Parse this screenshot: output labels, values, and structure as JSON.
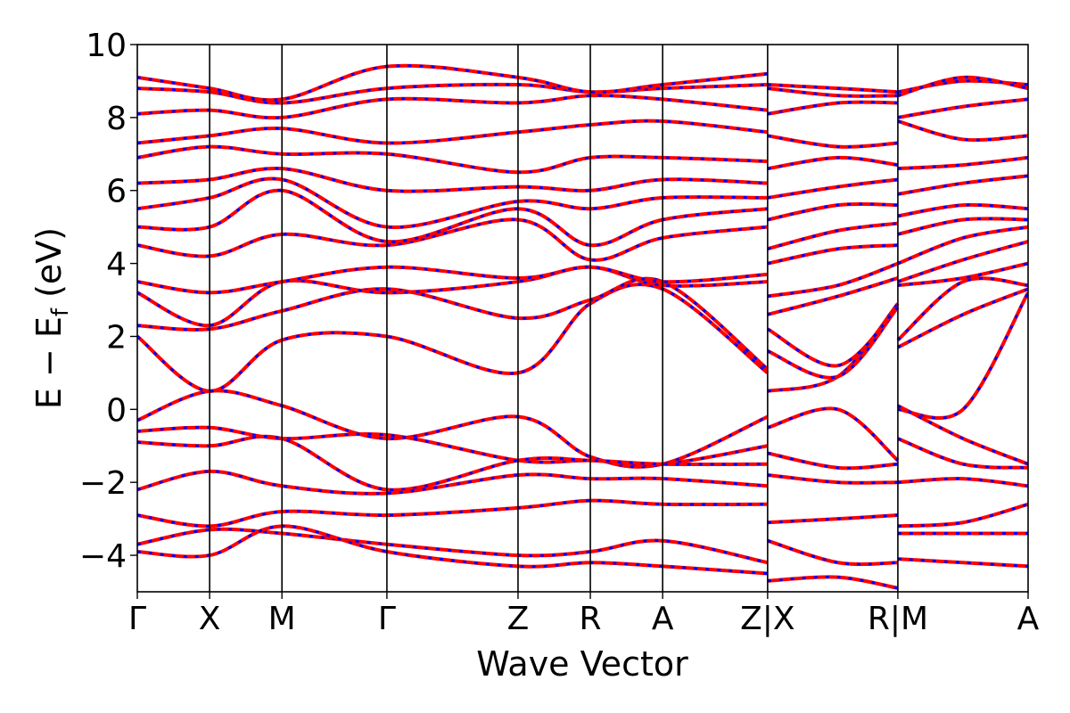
{
  "chart_data": {
    "type": "line",
    "title": "",
    "xlabel": "Wave Vector",
    "ylabel": "E − E_f (eV)",
    "ylabel_parts": {
      "main": "E − E",
      "sub": "f",
      "unit": " (eV)"
    },
    "ylim": [
      -5,
      10
    ],
    "yticks": [
      -4,
      -2,
      0,
      2,
      4,
      6,
      8,
      10
    ],
    "ytick_labels": [
      "−4",
      "−2",
      "0",
      "2",
      "4",
      "6",
      "8",
      "10"
    ],
    "kpath_labels": [
      "Γ",
      "X",
      "M",
      "Γ",
      "Z",
      "R",
      "A",
      "Z|X",
      "R|M",
      "A"
    ],
    "kpath_positions": [
      0,
      0.578,
      1.156,
      1.995,
      3.043,
      3.621,
      4.199,
      5.038,
      6.079,
      7.12
    ],
    "segment_breaks": [
      5.038,
      6.079
    ],
    "grid": false,
    "line_colors": {
      "solid": "#ff0000",
      "dashed": "#0000ff"
    },
    "series": [
      {
        "x": [
          0,
          0.578,
          1.156,
          1.995,
          3.043,
          3.621,
          4.199,
          5.038,
          5.038,
          5.6,
          6.079,
          6.079,
          6.6,
          7.12
        ],
        "y": [
          -0.3,
          0.5,
          0.1,
          -0.8,
          -0.2,
          -1.3,
          -1.5,
          -0.2,
          0.5,
          0.9,
          2.9,
          0.0,
          0.0,
          3.2
        ]
      },
      {
        "x": [
          0,
          0.578,
          1.156,
          1.995,
          3.043,
          3.621,
          4.199,
          5.038,
          5.038,
          5.6,
          6.079,
          6.079,
          6.6,
          7.12
        ],
        "y": [
          -0.6,
          -0.5,
          -0.8,
          -0.7,
          -1.4,
          -1.4,
          -1.5,
          -1.0,
          -0.5,
          0.0,
          -1.4,
          0.1,
          -0.8,
          -1.5
        ]
      },
      {
        "x": [
          0,
          0.578,
          1.156,
          1.995,
          3.043,
          3.621,
          4.199,
          5.038,
          5.038,
          5.6,
          6.079,
          6.079,
          6.6,
          7.12
        ],
        "y": [
          -0.9,
          -1.0,
          -0.8,
          -2.2,
          -1.4,
          -1.4,
          -1.5,
          -1.5,
          -1.2,
          -1.6,
          -1.5,
          -0.8,
          -1.5,
          -1.6
        ]
      },
      {
        "x": [
          0,
          0.578,
          1.156,
          1.995,
          3.043,
          3.621,
          4.199,
          5.038,
          5.038,
          5.6,
          6.079,
          6.079,
          6.6,
          7.12
        ],
        "y": [
          -2.2,
          -1.7,
          -2.1,
          -2.3,
          -1.8,
          -1.9,
          -1.9,
          -2.1,
          -1.8,
          -2.0,
          -2.0,
          -2.0,
          -1.9,
          -2.1
        ]
      },
      {
        "x": [
          0,
          0.578,
          1.156,
          1.995,
          3.043,
          3.621,
          4.199,
          5.038,
          5.038,
          5.6,
          6.079,
          6.079,
          6.6,
          7.12
        ],
        "y": [
          -2.9,
          -3.2,
          -2.8,
          -2.9,
          -2.7,
          -2.5,
          -2.6,
          -2.6,
          -3.1,
          -3.0,
          -2.9,
          -3.2,
          -3.1,
          -2.6
        ]
      },
      {
        "x": [
          0,
          0.578,
          1.156,
          1.995,
          3.043,
          3.621,
          4.199,
          5.038,
          5.038,
          5.6,
          6.079,
          6.079,
          6.6,
          7.12
        ],
        "y": [
          -3.7,
          -3.3,
          -3.4,
          -3.7,
          -4.0,
          -3.9,
          -3.6,
          -4.2,
          -3.6,
          -4.2,
          -4.2,
          -3.4,
          -3.4,
          -3.4
        ]
      },
      {
        "x": [
          0,
          0.578,
          1.156,
          1.995,
          3.043,
          3.621,
          4.199,
          5.038,
          5.038,
          5.6,
          6.079,
          6.079,
          6.6,
          7.12
        ],
        "y": [
          -3.9,
          -4.0,
          -3.2,
          -3.9,
          -4.3,
          -4.2,
          -4.3,
          -4.5,
          -4.7,
          -4.6,
          -4.9,
          -4.1,
          -4.2,
          -4.3
        ]
      },
      {
        "x": [
          0,
          0.578,
          1.156,
          1.995,
          3.043,
          3.621,
          4.199,
          5.038,
          5.038,
          5.6,
          6.079,
          6.079,
          6.6,
          7.12
        ],
        "y": [
          2.0,
          0.5,
          1.9,
          2.0,
          1.0,
          2.9,
          3.3,
          1.0,
          1.6,
          0.9,
          2.8,
          1.7,
          2.6,
          3.3
        ]
      },
      {
        "x": [
          0,
          0.578,
          1.156,
          1.995,
          3.043,
          3.621,
          4.199,
          5.038,
          5.038,
          5.6,
          6.079,
          6.079,
          6.6,
          7.12
        ],
        "y": [
          2.3,
          2.2,
          2.7,
          3.3,
          2.5,
          3.0,
          3.5,
          1.1,
          2.2,
          1.2,
          2.8,
          1.9,
          3.5,
          3.4
        ]
      },
      {
        "x": [
          0,
          0.578,
          1.156,
          1.995,
          3.043,
          3.621,
          4.199,
          5.038,
          5.038,
          5.6,
          6.079,
          6.079,
          6.6,
          7.12
        ],
        "y": [
          3.2,
          2.3,
          3.5,
          3.2,
          3.5,
          3.9,
          3.4,
          3.5,
          2.6,
          3.1,
          3.6,
          3.4,
          3.6,
          4.0
        ]
      },
      {
        "x": [
          0,
          0.578,
          1.156,
          1.995,
          3.043,
          3.621,
          4.199,
          5.038,
          5.038,
          5.6,
          6.079,
          6.079,
          6.6,
          7.12
        ],
        "y": [
          3.5,
          3.2,
          3.5,
          3.9,
          3.6,
          3.9,
          3.5,
          3.7,
          3.1,
          3.4,
          4.0,
          3.5,
          4.1,
          4.6
        ]
      },
      {
        "x": [
          0,
          0.578,
          1.156,
          1.995,
          3.043,
          3.621,
          4.199,
          5.038,
          5.038,
          5.6,
          6.079,
          6.079,
          6.6,
          7.12
        ],
        "y": [
          4.5,
          4.2,
          4.8,
          4.5,
          5.2,
          4.1,
          4.7,
          5.0,
          4.0,
          4.4,
          4.5,
          4.0,
          4.7,
          5.0
        ]
      },
      {
        "x": [
          0,
          0.578,
          1.156,
          1.995,
          3.043,
          3.621,
          4.199,
          5.038,
          5.038,
          5.6,
          6.079,
          6.079,
          6.6,
          7.12
        ],
        "y": [
          5.0,
          5.0,
          6.0,
          4.6,
          5.5,
          4.5,
          5.2,
          5.5,
          4.4,
          4.9,
          5.1,
          4.8,
          5.2,
          5.2
        ]
      },
      {
        "x": [
          0,
          0.578,
          1.156,
          1.995,
          3.043,
          3.621,
          4.199,
          5.038,
          5.038,
          5.6,
          6.079,
          6.079,
          6.6,
          7.12
        ],
        "y": [
          5.5,
          5.8,
          6.3,
          5.0,
          5.7,
          5.5,
          5.8,
          5.8,
          5.2,
          5.6,
          5.6,
          5.3,
          5.6,
          5.5
        ]
      },
      {
        "x": [
          0,
          0.578,
          1.156,
          1.995,
          3.043,
          3.621,
          4.199,
          5.038,
          5.038,
          5.6,
          6.079,
          6.079,
          6.6,
          7.12
        ],
        "y": [
          6.2,
          6.3,
          6.6,
          6.0,
          6.1,
          6.0,
          6.3,
          6.2,
          5.8,
          6.1,
          6.3,
          5.9,
          6.2,
          6.4
        ]
      },
      {
        "x": [
          0,
          0.578,
          1.156,
          1.995,
          3.043,
          3.621,
          4.199,
          5.038,
          5.038,
          5.6,
          6.079,
          6.079,
          6.6,
          7.12
        ],
        "y": [
          6.9,
          7.2,
          7.0,
          7.0,
          6.5,
          6.9,
          6.9,
          6.8,
          6.6,
          6.9,
          6.7,
          6.6,
          6.7,
          6.9
        ]
      },
      {
        "x": [
          0,
          0.578,
          1.156,
          1.995,
          3.043,
          3.621,
          4.199,
          5.038,
          5.038,
          5.6,
          6.079,
          6.079,
          6.6,
          7.12
        ],
        "y": [
          7.3,
          7.5,
          7.7,
          7.3,
          7.6,
          7.8,
          7.9,
          7.6,
          7.5,
          7.2,
          7.3,
          7.9,
          7.4,
          7.5
        ]
      },
      {
        "x": [
          0,
          0.578,
          1.156,
          1.995,
          3.043,
          3.621,
          4.199,
          5.038,
          5.038,
          5.6,
          6.079,
          6.079,
          6.6,
          7.12
        ],
        "y": [
          8.1,
          8.2,
          8.0,
          8.5,
          8.4,
          8.6,
          8.5,
          8.2,
          8.1,
          8.4,
          8.4,
          8.0,
          8.3,
          8.5
        ]
      },
      {
        "x": [
          0,
          0.578,
          1.156,
          1.995,
          3.043,
          3.621,
          4.199,
          5.038,
          5.038,
          5.6,
          6.079,
          6.079,
          6.6,
          7.12
        ],
        "y": [
          8.8,
          8.7,
          8.4,
          8.8,
          8.9,
          8.7,
          8.8,
          8.9,
          8.8,
          8.6,
          8.6,
          8.7,
          9.0,
          8.9
        ]
      },
      {
        "x": [
          0,
          0.578,
          1.156,
          1.995,
          3.043,
          3.621,
          4.199,
          5.038,
          5.038,
          5.6,
          6.079,
          6.079,
          6.6,
          7.12
        ],
        "y": [
          9.1,
          8.8,
          8.5,
          9.4,
          9.1,
          8.7,
          8.9,
          9.2,
          8.9,
          8.8,
          8.7,
          8.6,
          9.1,
          8.8
        ]
      }
    ]
  }
}
